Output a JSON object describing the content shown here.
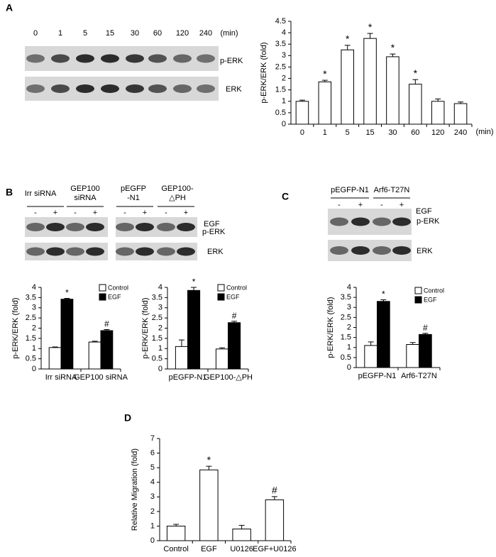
{
  "panel_labels": [
    "A",
    "B",
    "C",
    "D"
  ],
  "blots": [
    {
      "lanes": [
        "0",
        "1",
        "5",
        "15",
        "30",
        "60",
        "120",
        "240"
      ],
      "unit": "(min)",
      "bands": [
        "p-ERK",
        "ERK"
      ]
    },
    {
      "groups": [
        [
          "Irr siRNA"
        ],
        [
          "GEP100",
          "siRNA"
        ],
        [
          "pEGFP",
          "-N1"
        ],
        [
          "GEP100-",
          "△PH"
        ]
      ],
      "lanes": [
        "-",
        "+",
        "-",
        "+",
        "-",
        "+",
        "-",
        "+"
      ],
      "treatment": "EGF",
      "bands": [
        "p-ERK",
        "ERK"
      ]
    },
    {
      "groups": [
        [
          "pEGFP-N1"
        ],
        [
          "Arf6-T27N"
        ]
      ],
      "lanes": [
        "-",
        "+",
        "-",
        "+"
      ],
      "treatment": "EGF",
      "bands": [
        "p-ERK",
        "ERK"
      ]
    }
  ],
  "chart_data": [
    {
      "type": "bar",
      "y_label": "p-ERK/ERK (fold)",
      "x_unit": "(min)",
      "categories": [
        "0",
        "1",
        "5",
        "15",
        "30",
        "60",
        "120",
        "240"
      ],
      "values": [
        1.0,
        1.85,
        3.25,
        3.75,
        2.95,
        1.75,
        1.0,
        0.9
      ],
      "errors": [
        0.05,
        0.07,
        0.2,
        0.22,
        0.12,
        0.2,
        0.1,
        0.07
      ],
      "annotations": [
        null,
        "*",
        "*",
        "*",
        "*",
        "*",
        null,
        null
      ],
      "color": "#ffffff",
      "ylim": [
        0,
        4.5
      ],
      "yticks": [
        0,
        0.5,
        1,
        1.5,
        2,
        2.5,
        3,
        3.5,
        4,
        4.5
      ]
    },
    {
      "type": "grouped_bar",
      "y_label": "p-ERK/ERK (fold)",
      "categories": [
        "Irr siRNA",
        "GEP100  siRNA"
      ],
      "series": [
        {
          "name": "Control",
          "color": "#ffffff",
          "values": [
            1.05,
            1.32
          ],
          "errors": [
            0.03,
            0.04
          ],
          "annotations": [
            null,
            null
          ]
        },
        {
          "name": "EGF",
          "color": "#000000",
          "values": [
            3.42,
            1.88
          ],
          "errors": [
            0.04,
            0.05
          ],
          "annotations": [
            "*",
            "#"
          ]
        }
      ],
      "ylim": [
        0,
        4
      ],
      "yticks": [
        0,
        0.5,
        1,
        1.5,
        2,
        2.5,
        3,
        3.5,
        4
      ]
    },
    {
      "type": "grouped_bar",
      "y_label": "p-ERK/ERK (fold)",
      "categories": [
        "pEGFP-N1",
        "GEP100-△PH"
      ],
      "series": [
        {
          "name": "Control",
          "color": "#ffffff",
          "values": [
            1.1,
            0.98
          ],
          "errors": [
            0.32,
            0.06
          ],
          "annotations": [
            null,
            null
          ]
        },
        {
          "name": "EGF",
          "color": "#000000",
          "values": [
            3.85,
            2.27
          ],
          "errors": [
            0.15,
            0.07
          ],
          "annotations": [
            "*",
            "#"
          ]
        }
      ],
      "ylim": [
        0,
        4
      ],
      "yticks": [
        0,
        0.5,
        1,
        1.5,
        2,
        2.5,
        3,
        3.5,
        4
      ]
    },
    {
      "type": "grouped_bar",
      "y_label": "p-ERK/ERK (fold)",
      "categories": [
        "pEGFP-N1",
        "Arf6-T27N"
      ],
      "series": [
        {
          "name": "Control",
          "color": "#ffffff",
          "values": [
            1.1,
            1.15
          ],
          "errors": [
            0.18,
            0.1
          ],
          "annotations": [
            null,
            null
          ]
        },
        {
          "name": "EGF",
          "color": "#000000",
          "values": [
            3.3,
            1.65
          ],
          "errors": [
            0.08,
            0.06
          ],
          "annotations": [
            "*",
            "#"
          ]
        }
      ],
      "ylim": [
        0,
        4
      ],
      "yticks": [
        0,
        0.5,
        1,
        1.5,
        2,
        2.5,
        3,
        3.5,
        4
      ]
    },
    {
      "type": "bar",
      "y_label": "Relative  Migration (fold)",
      "categories": [
        "Control",
        "EGF",
        "U0126",
        "EGF+U0126"
      ],
      "values": [
        1.0,
        4.85,
        0.8,
        2.8
      ],
      "errors": [
        0.12,
        0.25,
        0.25,
        0.22
      ],
      "annotations": [
        null,
        "*",
        null,
        "#"
      ],
      "color": "#ffffff",
      "ylim": [
        0,
        7
      ],
      "yticks": [
        0,
        1,
        2,
        3,
        4,
        5,
        6,
        7
      ]
    }
  ]
}
